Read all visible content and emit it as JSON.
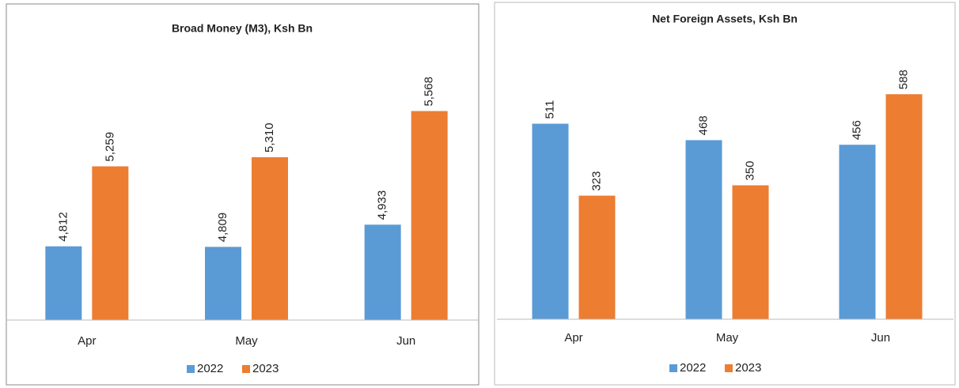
{
  "chart_data": [
    {
      "type": "bar",
      "title": "Broad Money (M3), Ksh Bn",
      "categories": [
        "Apr",
        "May",
        "Jun"
      ],
      "series": [
        {
          "name": "2022",
          "color": "#5b9bd5",
          "values": [
            4812,
            4809,
            4933
          ],
          "value_labels": [
            "4,812",
            "4,809",
            "4,933"
          ]
        },
        {
          "name": "2023",
          "color": "#ed7d31",
          "values": [
            5259,
            5310,
            5568
          ],
          "value_labels": [
            "5,259",
            "5,310",
            "5,568"
          ]
        }
      ],
      "ylim": [
        4400,
        5800
      ],
      "legend": "bottom"
    },
    {
      "type": "bar",
      "title": "Net Foreign Assets, Ksh Bn",
      "categories": [
        "Apr",
        "May",
        "Jun"
      ],
      "series": [
        {
          "name": "2022",
          "color": "#5b9bd5",
          "values": [
            511,
            468,
            456
          ]
        },
        {
          "name": "2023",
          "color": "#ed7d31",
          "values": [
            323,
            350,
            588
          ]
        }
      ],
      "ylim": [
        0,
        700
      ],
      "legend": "bottom"
    }
  ]
}
